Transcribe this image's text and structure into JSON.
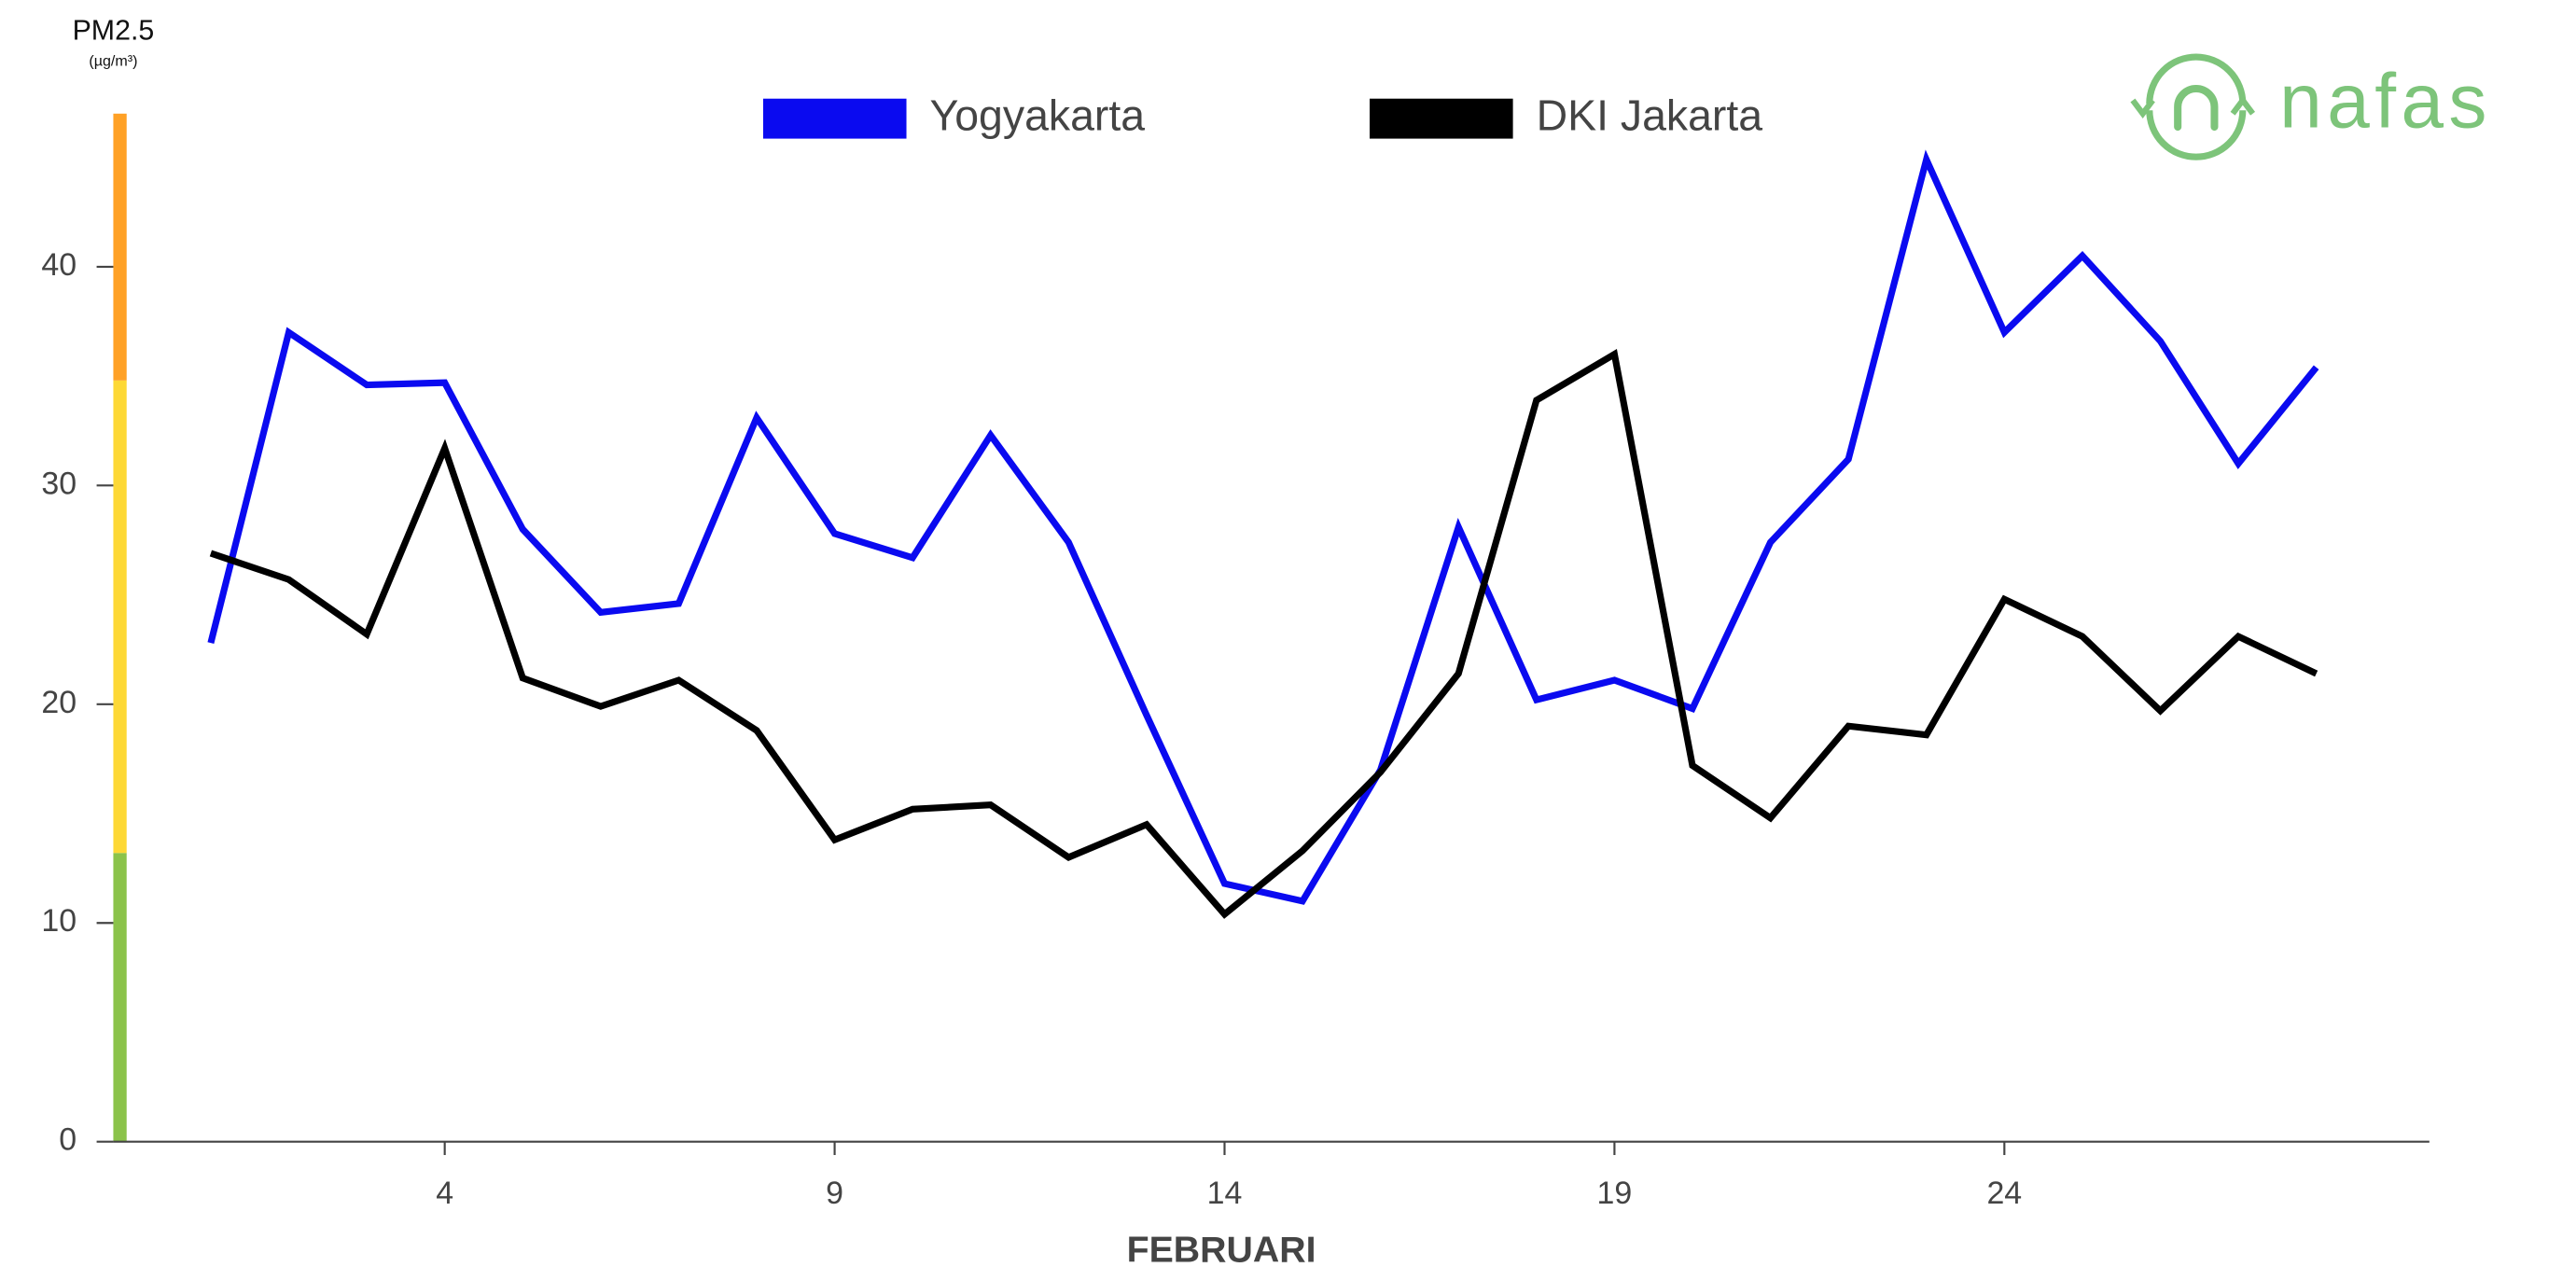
{
  "chart_data": {
    "type": "line",
    "title": "PM2.5",
    "subtitle": "(µg/m³)",
    "x_label": "FEBRUARI",
    "logo": "nafas",
    "x": [
      1,
      2,
      3,
      4,
      5,
      6,
      7,
      8,
      9,
      10,
      11,
      12,
      13,
      14,
      15,
      16,
      17,
      18,
      19,
      20,
      21,
      22,
      23,
      24,
      25,
      26,
      27,
      28
    ],
    "xlim": [
      -0.25,
      29.45
    ],
    "xticks": [
      4,
      9,
      14,
      19,
      24
    ],
    "ylim": [
      0,
      47
    ],
    "yticks": [
      0,
      10,
      20,
      30,
      40
    ],
    "legend": "top",
    "bands": [
      {
        "from": 0,
        "to": 13.2,
        "color": "#8bc34a"
      },
      {
        "from": 13.2,
        "to": 34.8,
        "color": "#fdd835"
      },
      {
        "from": 34.8,
        "to": 47,
        "color": "#ffa126"
      }
    ],
    "series": [
      {
        "name": "Yogyakarta",
        "color": "#0a0af0",
        "values": [
          22.8,
          37.0,
          34.6,
          34.7,
          28.0,
          24.2,
          24.6,
          33.1,
          27.8,
          26.7,
          32.3,
          27.4,
          19.5,
          11.8,
          11.0,
          17.0,
          28.1,
          20.2,
          21.1,
          19.8,
          27.4,
          31.2,
          44.9,
          37.0,
          40.5,
          36.6,
          31.0,
          35.4
        ]
      },
      {
        "name": "DKI Jakarta",
        "color": "#000000",
        "values": [
          26.9,
          25.7,
          23.2,
          31.7,
          21.2,
          19.9,
          21.1,
          18.8,
          13.8,
          15.2,
          15.4,
          13.0,
          14.5,
          10.4,
          13.3,
          16.9,
          21.4,
          33.9,
          36.0,
          17.2,
          14.8,
          19.0,
          18.6,
          24.8,
          23.1,
          19.7,
          23.1,
          21.4
        ]
      }
    ]
  }
}
